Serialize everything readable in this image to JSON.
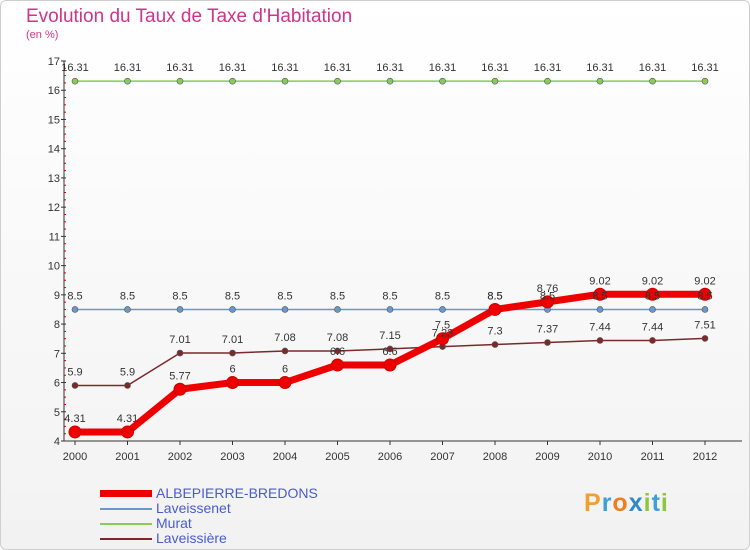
{
  "chart_data": {
    "type": "line",
    "title": "Evolution du Taux de Taxe d'Habitation",
    "subtitle": "(en %)",
    "xlabel": "",
    "ylabel": "",
    "x": [
      "2000",
      "2001",
      "2002",
      "2003",
      "2004",
      "2005",
      "2006",
      "2007",
      "2008",
      "2009",
      "2010",
      "2011",
      "2012"
    ],
    "ylim": [
      4,
      17
    ],
    "yticks": [
      4,
      5,
      6,
      7,
      8,
      9,
      10,
      11,
      12,
      13,
      14,
      15,
      16,
      17
    ],
    "grid": false,
    "series": [
      {
        "name": "ALBEPIERRE-BREDONS",
        "color": "#ee0000",
        "values": [
          4.31,
          4.31,
          5.77,
          6,
          6,
          6.6,
          6.6,
          7.5,
          8.5,
          8.76,
          9.02,
          9.02,
          9.02
        ],
        "labels": [
          "4.31",
          "4.31",
          "5.77",
          "6",
          "6",
          "6.6",
          "6.6",
          "7.5",
          "8.5",
          "8.76",
          "9.02",
          "9.02",
          "9.02"
        ]
      },
      {
        "name": "Laveissenet",
        "color": "#6699cc",
        "values": [
          8.5,
          8.5,
          8.5,
          8.5,
          8.5,
          8.5,
          8.5,
          8.5,
          8.5,
          8.5,
          8.5,
          8.5,
          8.5
        ],
        "labels": [
          "8.5",
          "8.5",
          "8.5",
          "8.5",
          "8.5",
          "8.5",
          "8.5",
          "8.5",
          "8.5",
          "8.5",
          "8.5",
          "8.5",
          "8.5"
        ]
      },
      {
        "name": "Murat",
        "color": "#88cc55",
        "values": [
          16.31,
          16.31,
          16.31,
          16.31,
          16.31,
          16.31,
          16.31,
          16.31,
          16.31,
          16.31,
          16.31,
          16.31,
          16.31
        ],
        "labels": [
          "16.31",
          "16.31",
          "16.31",
          "16.31",
          "16.31",
          "16.31",
          "16.31",
          "16.31",
          "16.31",
          "16.31",
          "16.31",
          "16.31",
          "16.31"
        ]
      },
      {
        "name": "Laveissière",
        "color": "#7a2a2a",
        "values": [
          5.9,
          5.9,
          7.01,
          7.01,
          7.08,
          7.08,
          7.15,
          7.23,
          7.3,
          7.37,
          7.44,
          7.44,
          7.51
        ],
        "labels": [
          "5.9",
          "5.9",
          "7.01",
          "7.01",
          "7.08",
          "7.08",
          "7.15",
          "7.23",
          "7.3",
          "7.37",
          "7.44",
          "7.44",
          "7.51"
        ]
      }
    ]
  },
  "logo": {
    "p": "P",
    "r": "r",
    "o": "o",
    "x": "x",
    "i": "i",
    "t": "t",
    "i2": "i"
  }
}
